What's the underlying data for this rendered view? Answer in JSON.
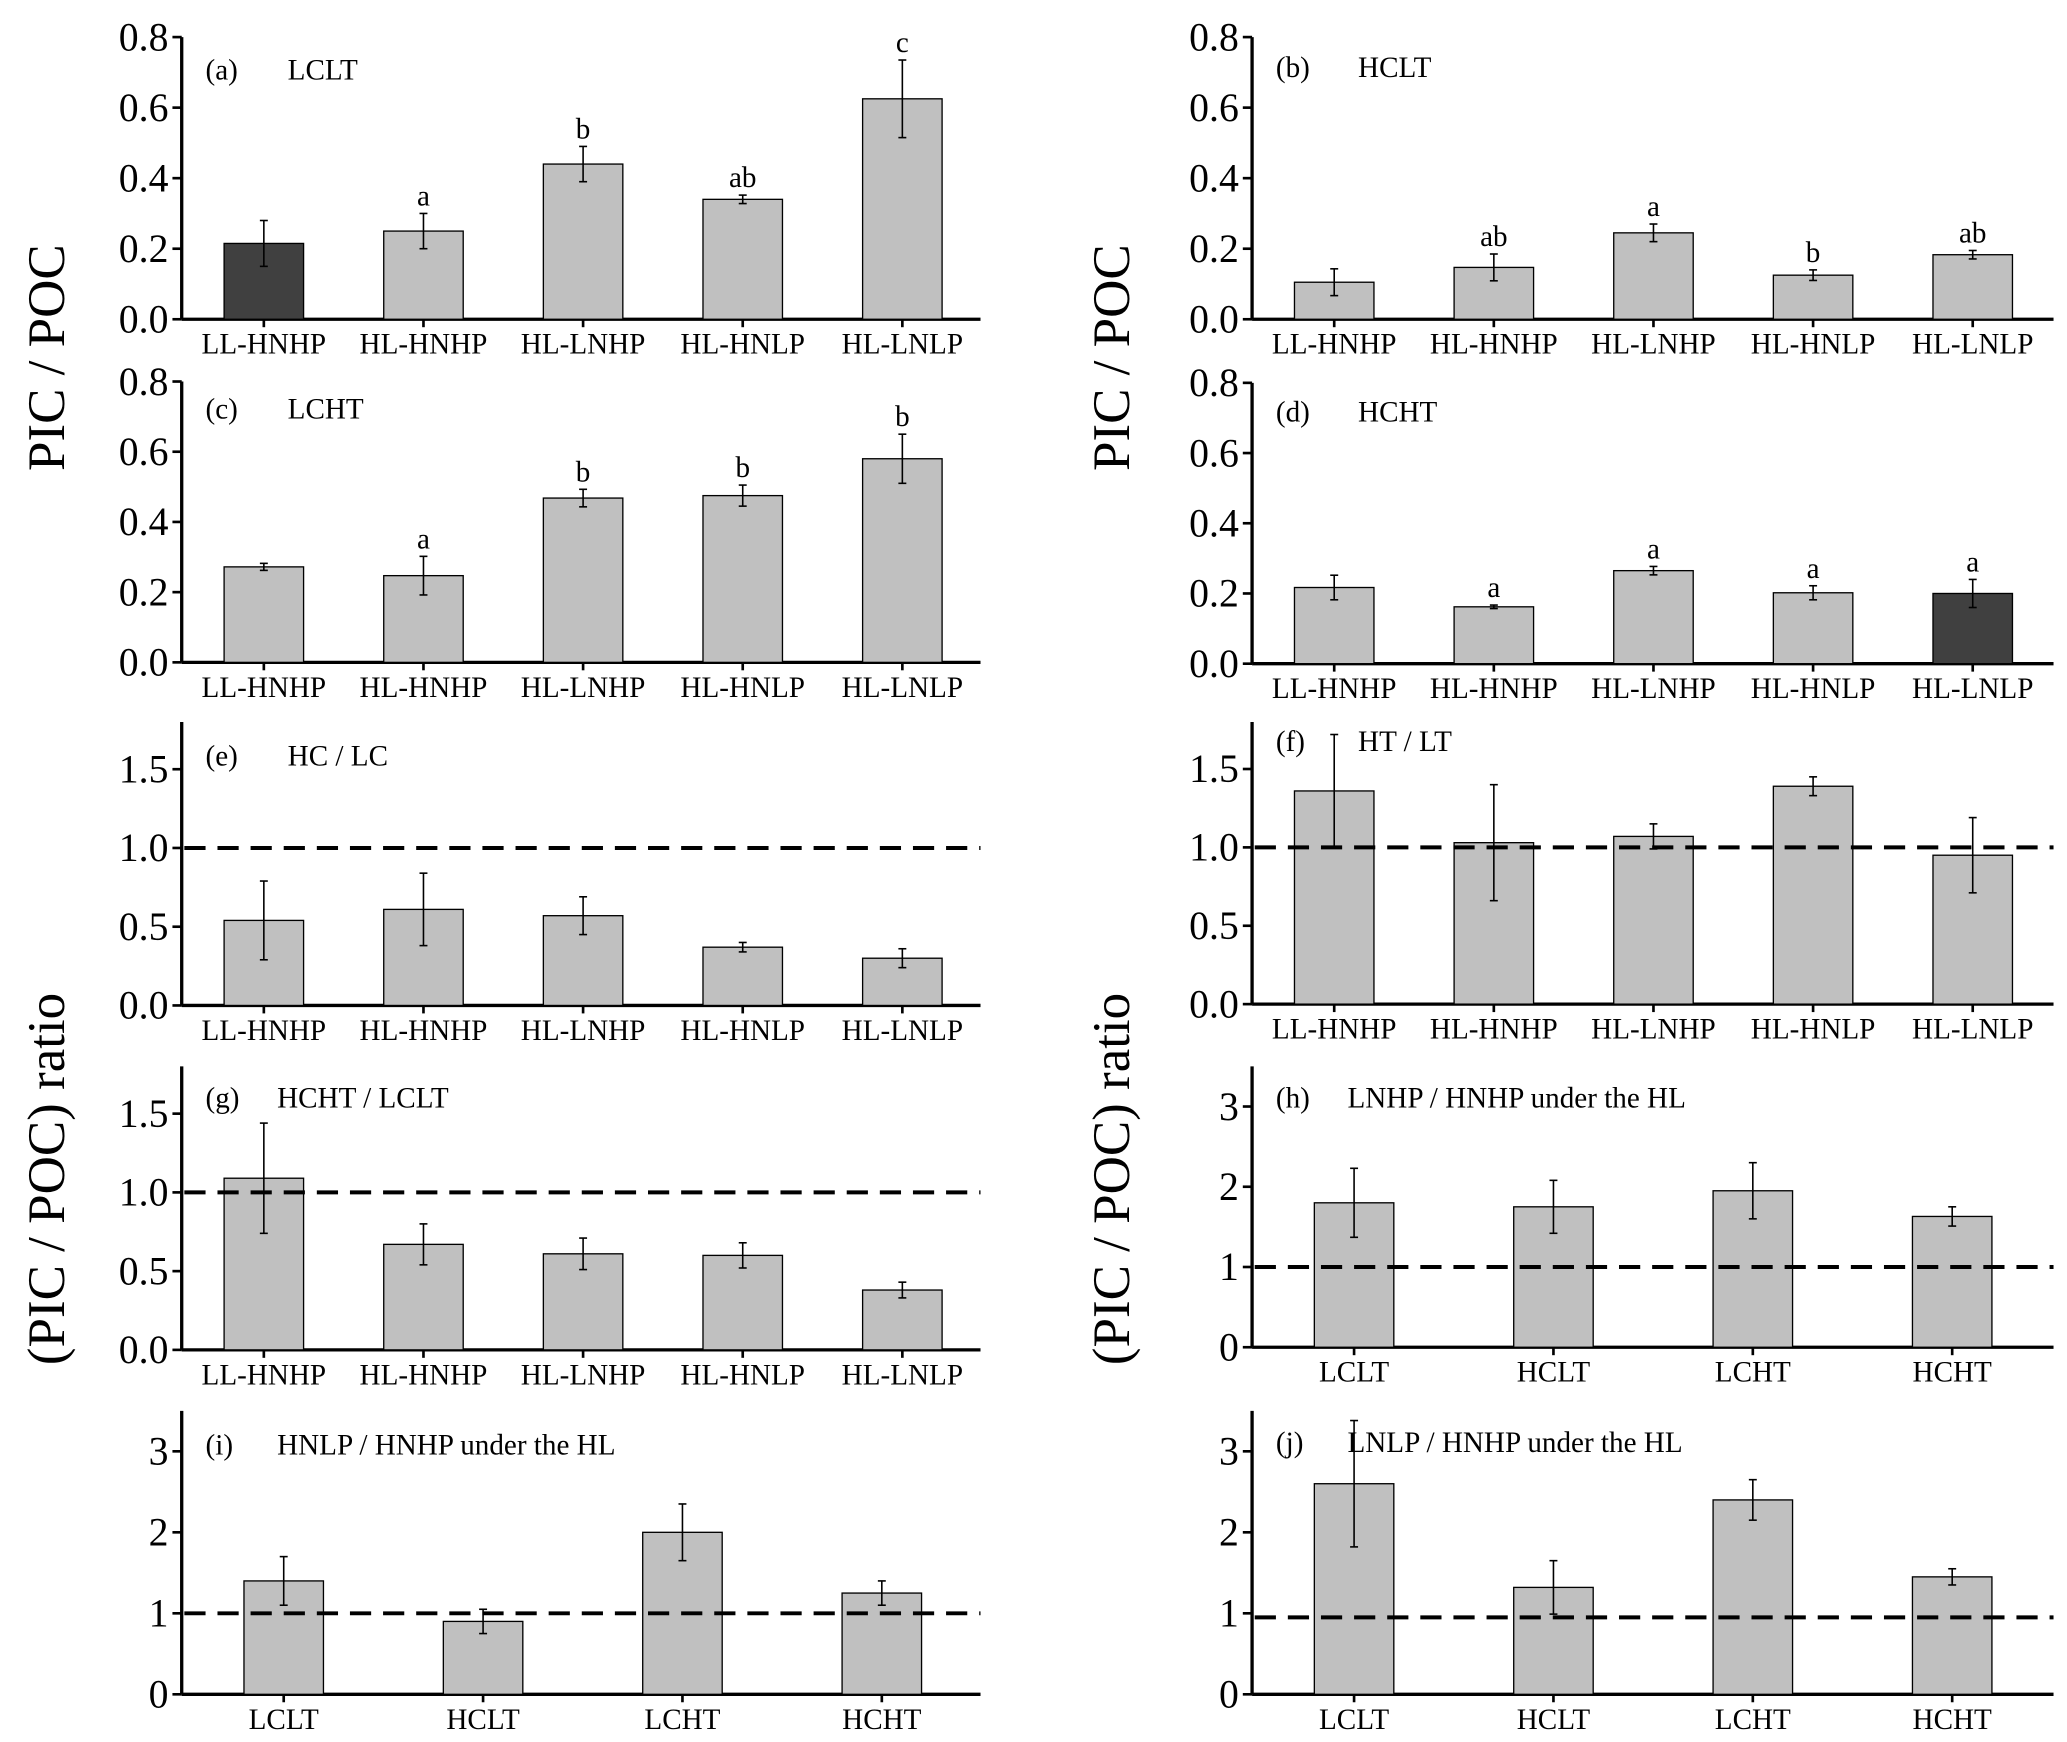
{
  "ylabels": {
    "top": "PIC / POC",
    "bottom": "(PIC / POC) ratio"
  },
  "colors": {
    "bar": "#c0c0c0",
    "highlight": "#404040",
    "edge": "#000000"
  },
  "chart_data": [
    {
      "id": "a",
      "type": "bar",
      "label": "(a)",
      "title": "LCLT",
      "ylim": [
        0,
        0.8
      ],
      "yticks": [
        "0.0",
        "0.2",
        "0.4",
        "0.6",
        "0.8"
      ],
      "ytick_values": [
        0,
        0.2,
        0.4,
        0.6,
        0.8
      ],
      "categories": [
        "LL-HNHP",
        "HL-HNHP",
        "HL-LNHP",
        "HL-HNLP",
        "HL-LNLP"
      ],
      "values": [
        0.215,
        0.25,
        0.44,
        0.34,
        0.625
      ],
      "errors": [
        0.065,
        0.05,
        0.05,
        0.012,
        0.11
      ],
      "letters": [
        "",
        "a",
        "b",
        "ab",
        "c"
      ],
      "highlight": [
        0
      ],
      "refline": null
    },
    {
      "id": "b",
      "type": "bar",
      "label": "(b)",
      "title": "HCLT",
      "ylim": [
        0,
        0.8
      ],
      "yticks": [
        "0.0",
        "0.2",
        "0.4",
        "0.6",
        "0.8"
      ],
      "ytick_values": [
        0,
        0.2,
        0.4,
        0.6,
        0.8
      ],
      "categories": [
        "LL-HNHP",
        "HL-HNHP",
        "HL-LNHP",
        "HL-HNLP",
        "HL-LNLP"
      ],
      "values": [
        0.105,
        0.147,
        0.245,
        0.125,
        0.183
      ],
      "errors": [
        0.038,
        0.038,
        0.025,
        0.015,
        0.012
      ],
      "letters": [
        "",
        "ab",
        "a",
        "b",
        "ab"
      ],
      "highlight": [],
      "refline": null
    },
    {
      "id": "c",
      "type": "bar",
      "label": "(c)",
      "title": "LCHT",
      "ylim": [
        0,
        0.8
      ],
      "yticks": [
        "0.0",
        "0.2",
        "0.4",
        "0.6",
        "0.8"
      ],
      "ytick_values": [
        0,
        0.2,
        0.4,
        0.6,
        0.8
      ],
      "categories": [
        "LL-HNHP",
        "HL-HNHP",
        "HL-LNHP",
        "HL-HNLP",
        "HL-LNLP"
      ],
      "values": [
        0.272,
        0.247,
        0.468,
        0.475,
        0.58
      ],
      "errors": [
        0.01,
        0.055,
        0.025,
        0.03,
        0.07
      ],
      "letters": [
        "",
        "a",
        "b",
        "b",
        "b"
      ],
      "highlight": [],
      "refline": null
    },
    {
      "id": "d",
      "type": "bar",
      "label": "(d)",
      "title": "HCHT",
      "ylim": [
        0,
        0.8
      ],
      "yticks": [
        "0.0",
        "0.2",
        "0.4",
        "0.6",
        "0.8"
      ],
      "ytick_values": [
        0,
        0.2,
        0.4,
        0.6,
        0.8
      ],
      "categories": [
        "LL-HNHP",
        "HL-HNHP",
        "HL-LNHP",
        "HL-HNLP",
        "HL-LNLP"
      ],
      "values": [
        0.217,
        0.162,
        0.265,
        0.202,
        0.2
      ],
      "errors": [
        0.035,
        0.005,
        0.012,
        0.02,
        0.04
      ],
      "letters": [
        "",
        "a",
        "a",
        "a",
        "a"
      ],
      "highlight": [
        4
      ],
      "refline": null
    },
    {
      "id": "e",
      "type": "bar",
      "label": "(e)",
      "title": "HC / LC",
      "ylim": [
        0,
        1.8
      ],
      "yticks": [
        "0.0",
        "0.5",
        "1.0",
        "1.5"
      ],
      "ytick_values": [
        0,
        0.5,
        1.0,
        1.5
      ],
      "categories": [
        "LL-HNHP",
        "HL-HNHP",
        "HL-LNHP",
        "HL-HNLP",
        "HL-LNLP"
      ],
      "values": [
        0.54,
        0.61,
        0.57,
        0.37,
        0.3
      ],
      "errors": [
        0.25,
        0.23,
        0.12,
        0.03,
        0.06
      ],
      "letters": [
        "",
        "",
        "",
        "",
        ""
      ],
      "highlight": [],
      "refline": 1.0
    },
    {
      "id": "f",
      "type": "bar",
      "label": "(f)",
      "title": "HT / LT",
      "ylim": [
        0,
        1.8
      ],
      "yticks": [
        "0.0",
        "0.5",
        "1.0",
        "1.5"
      ],
      "ytick_values": [
        0,
        0.5,
        1.0,
        1.5
      ],
      "categories": [
        "LL-HNHP",
        "HL-HNHP",
        "HL-LNHP",
        "HL-HNLP",
        "HL-LNLP"
      ],
      "values": [
        1.36,
        1.03,
        1.07,
        1.39,
        0.95
      ],
      "errors": [
        0.36,
        0.37,
        0.08,
        0.06,
        0.24
      ],
      "letters": [
        "",
        "",
        "",
        "",
        ""
      ],
      "highlight": [],
      "refline": 1.0
    },
    {
      "id": "g",
      "type": "bar",
      "label": "(g)",
      "title": "HCHT / LCLT",
      "ylim": [
        0,
        1.8
      ],
      "yticks": [
        "0.0",
        "0.5",
        "1.0",
        "1.5"
      ],
      "ytick_values": [
        0,
        0.5,
        1.0,
        1.5
      ],
      "categories": [
        "LL-HNHP",
        "HL-HNHP",
        "HL-LNHP",
        "HL-HNLP",
        "HL-LNLP"
      ],
      "values": [
        1.09,
        0.67,
        0.61,
        0.6,
        0.38
      ],
      "errors": [
        0.35,
        0.13,
        0.1,
        0.08,
        0.05
      ],
      "letters": [
        "",
        "",
        "",
        "",
        ""
      ],
      "highlight": [],
      "refline": 1.0
    },
    {
      "id": "h",
      "type": "bar",
      "label": "(h)",
      "title": "LNHP / HNHP under the HL",
      "ylim": [
        0,
        3.5
      ],
      "yticks": [
        "0",
        "1",
        "2",
        "3"
      ],
      "ytick_values": [
        0,
        1,
        2,
        3
      ],
      "categories": [
        "LCLT",
        "HCLT",
        "LCHT",
        "HCHT"
      ],
      "values": [
        1.8,
        1.75,
        1.95,
        1.63
      ],
      "errors": [
        0.43,
        0.33,
        0.35,
        0.12
      ],
      "letters": [
        "",
        "",
        "",
        ""
      ],
      "highlight": [],
      "refline": 1.0
    },
    {
      "id": "i",
      "type": "bar",
      "label": "(i)",
      "title": "HNLP / HNHP under the HL",
      "ylim": [
        0,
        3.5
      ],
      "yticks": [
        "0",
        "1",
        "2",
        "3"
      ],
      "ytick_values": [
        0,
        1,
        2,
        3
      ],
      "categories": [
        "LCLT",
        "HCLT",
        "LCHT",
        "HCHT"
      ],
      "values": [
        1.4,
        0.9,
        2.0,
        1.25
      ],
      "errors": [
        0.3,
        0.15,
        0.35,
        0.15
      ],
      "letters": [
        "",
        "",
        "",
        ""
      ],
      "highlight": [],
      "refline": 1.0
    },
    {
      "id": "j",
      "type": "bar",
      "label": "(j)",
      "title": "LNLP / HNHP under the HL",
      "ylim": [
        0,
        3.5
      ],
      "yticks": [
        "0",
        "1",
        "2",
        "3"
      ],
      "ytick_values": [
        0,
        1,
        2,
        3
      ],
      "categories": [
        "LCLT",
        "HCLT",
        "LCHT",
        "HCHT"
      ],
      "values": [
        2.6,
        1.32,
        2.4,
        1.45
      ],
      "errors": [
        0.78,
        0.33,
        0.25,
        0.1
      ],
      "letters": [
        "",
        "",
        "",
        ""
      ],
      "highlight": [],
      "refline": 0.95
    }
  ]
}
